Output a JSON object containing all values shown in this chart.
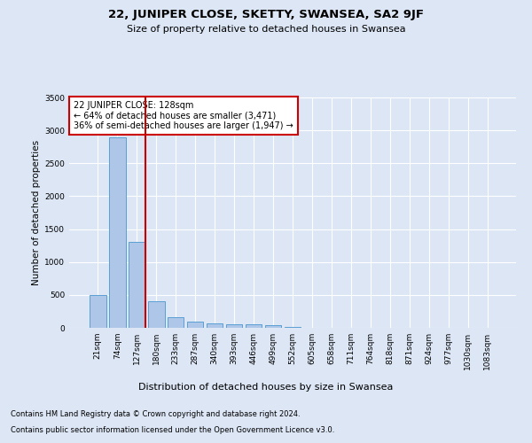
{
  "title": "22, JUNIPER CLOSE, SKETTY, SWANSEA, SA2 9JF",
  "subtitle": "Size of property relative to detached houses in Swansea",
  "xlabel": "Distribution of detached houses by size in Swansea",
  "ylabel": "Number of detached properties",
  "categories": [
    "21sqm",
    "74sqm",
    "127sqm",
    "180sqm",
    "233sqm",
    "287sqm",
    "340sqm",
    "393sqm",
    "446sqm",
    "499sqm",
    "552sqm",
    "605sqm",
    "658sqm",
    "711sqm",
    "764sqm",
    "818sqm",
    "871sqm",
    "924sqm",
    "977sqm",
    "1030sqm",
    "1083sqm"
  ],
  "values": [
    500,
    2900,
    1300,
    400,
    160,
    100,
    70,
    50,
    50,
    40,
    10,
    5,
    5,
    3,
    2,
    2,
    1,
    1,
    1,
    1,
    1
  ],
  "bar_color": "#aec6e8",
  "bar_edge_color": "#5a9fd4",
  "highlight_index": 2,
  "highlight_color": "#cc0000",
  "annotation_title": "22 JUNIPER CLOSE: 128sqm",
  "annotation_line1": "← 64% of detached houses are smaller (3,471)",
  "annotation_line2": "36% of semi-detached houses are larger (1,947) →",
  "annotation_box_color": "#ffffff",
  "annotation_box_edge": "#cc0000",
  "ylim": [
    0,
    3500
  ],
  "yticks": [
    0,
    500,
    1000,
    1500,
    2000,
    2500,
    3000,
    3500
  ],
  "footnote1": "Contains HM Land Registry data © Crown copyright and database right 2024.",
  "footnote2": "Contains public sector information licensed under the Open Government Licence v3.0.",
  "background_color": "#dce6f5",
  "plot_bg_color": "#dce6f5",
  "grid_color": "#ffffff"
}
